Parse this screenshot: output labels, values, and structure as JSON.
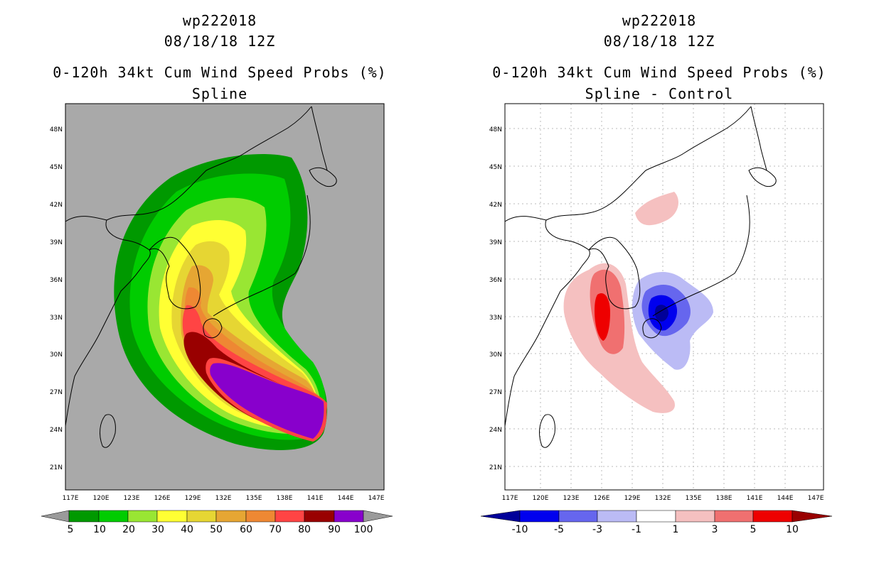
{
  "left_panel": {
    "title_line1": "wp222018",
    "title_line2": "08/18/18 12Z",
    "title_line3": "0-120h 34kt Cum Wind Speed Probs (%)",
    "title_line4": "Spline",
    "background_color": "#a9a9a9",
    "colorbar": {
      "colors": [
        "#9a9a9a",
        "#009900",
        "#00cc00",
        "#99e633",
        "#ffff33",
        "#e6d633",
        "#e6a633",
        "#ee8833",
        "#ff4444",
        "#990000",
        "#8800cc",
        "#9a9a9a"
      ],
      "labels": [
        "5",
        "10",
        "20",
        "30",
        "40",
        "50",
        "60",
        "70",
        "80",
        "90",
        "100"
      ]
    }
  },
  "right_panel": {
    "title_line1": "wp222018",
    "title_line2": "08/18/18 12Z",
    "title_line3": "0-120h 34kt Cum Wind Speed Probs (%)",
    "title_line4": "Spline - Control",
    "background_color": "#ffffff",
    "colorbar": {
      "colors": [
        "#000099",
        "#0000ee",
        "#6666ee",
        "#bbbbf5",
        "#ffffff",
        "#f5c0c0",
        "#f07070",
        "#ee0000",
        "#990000"
      ],
      "labels": [
        "-10",
        "-5",
        "-3",
        "-1",
        "1",
        "3",
        "5",
        "10"
      ]
    }
  },
  "axes": {
    "lat_labels": [
      "48N",
      "45N",
      "42N",
      "39N",
      "36N",
      "33N",
      "30N",
      "27N",
      "24N",
      "21N"
    ],
    "lon_labels": [
      "117E",
      "120E",
      "123E",
      "126E",
      "129E",
      "132E",
      "135E",
      "138E",
      "141E",
      "144E",
      "147E"
    ]
  }
}
